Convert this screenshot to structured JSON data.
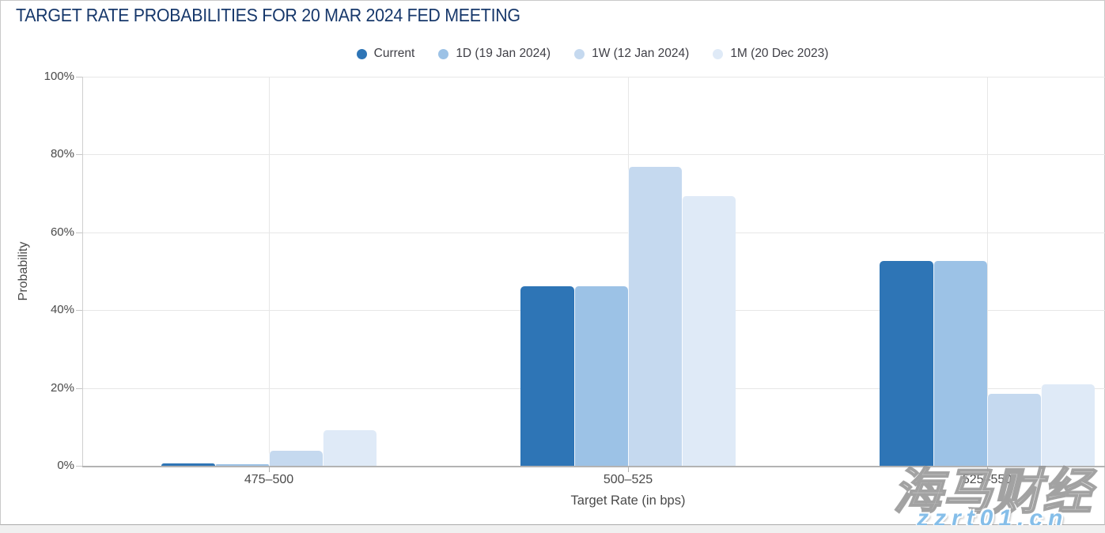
{
  "chart_data": {
    "type": "bar",
    "title": "TARGET RATE PROBABILITIES FOR 20 MAR 2024 FED MEETING",
    "categories": [
      "475–500",
      "500–525",
      "525–550"
    ],
    "series": [
      {
        "name": "Current",
        "color": "#2e75b6",
        "values": [
          0.7,
          46.2,
          52.7
        ]
      },
      {
        "name": "1D (19 Jan 2024)",
        "color": "#9cc2e6",
        "values": [
          0.5,
          46.2,
          52.7
        ]
      },
      {
        "name": "1W (12 Jan 2024)",
        "color": "#c5d9ef",
        "values": [
          3.9,
          76.8,
          18.5
        ]
      },
      {
        "name": "1M (20 Dec 2023)",
        "color": "#dfeaf7",
        "values": [
          9.1,
          69.3,
          20.9
        ]
      }
    ],
    "xlabel": "Target Rate (in bps)",
    "ylabel": "Probability",
    "ylim": [
      0,
      100
    ],
    "yticks": [
      "0%",
      "20%",
      "40%",
      "60%",
      "80%",
      "100%"
    ],
    "grid": true,
    "legend_position": "top"
  },
  "watermark": {
    "brand": "海马财经",
    "site": "zzrt01.cn"
  },
  "colors": {
    "title_text": "#17386b",
    "axis_text": "#4a4a4a",
    "gridline": "#e7e7e7",
    "baseline": "#b3b3b3"
  }
}
